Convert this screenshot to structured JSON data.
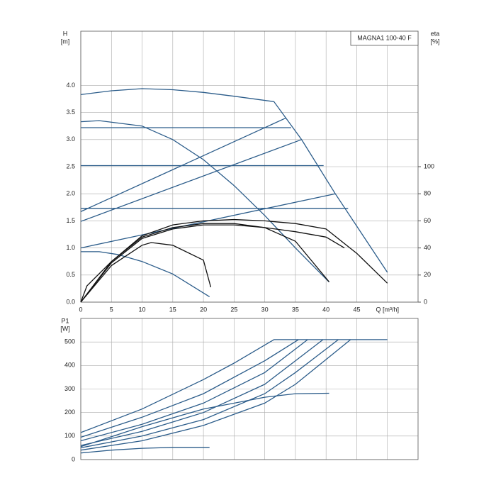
{
  "chart_data": [
    {
      "type": "line",
      "annotation": "MAGNA1 100-40 F",
      "y_label": "H",
      "y_unit": "[m]",
      "y2_label": "eta",
      "y2_unit": "[%]",
      "xlim": [
        0,
        55
      ],
      "xticks": [
        0,
        5,
        10,
        15,
        20,
        25,
        30,
        35,
        40,
        45,
        {
          "value": 50,
          "label": "Q [m³/h]"
        }
      ],
      "ylim": [
        0,
        5
      ],
      "yticks": [
        {
          "value": 0,
          "label": "0.0"
        },
        0.5,
        {
          "value": 1,
          "label": "1.0"
        },
        1.5,
        {
          "value": 2,
          "label": "2.0"
        },
        2.5,
        {
          "value": 3,
          "label": "3.0"
        },
        3.5,
        {
          "value": 4,
          "label": "4.0"
        }
      ],
      "y2lim": [
        0,
        200
      ],
      "y2ticks": [
        0,
        20,
        40,
        60,
        80,
        100
      ],
      "grid": true,
      "xtick_labels": true,
      "series": [
        {
          "color": "#2b5c8a",
          "x": [
            0,
            5,
            10,
            15,
            20,
            25,
            31.5,
            36,
            41.5,
            50
          ],
          "values": [
            3.83,
            3.9,
            3.94,
            3.92,
            3.87,
            3.8,
            3.7,
            3.0,
            2.0,
            0.55
          ]
        },
        {
          "color": "#2b5c8a",
          "x": [
            0,
            34.3
          ],
          "values": [
            3.22,
            3.22
          ]
        },
        {
          "color": "#2b5c8a",
          "x": [
            0,
            39.6
          ],
          "values": [
            2.52,
            2.52
          ]
        },
        {
          "color": "#2b5c8a",
          "x": [
            0,
            43.6
          ],
          "values": [
            1.73,
            1.73
          ]
        },
        {
          "color": "#2b5c8a",
          "x": [
            0,
            33.5
          ],
          "values": [
            1.67,
            3.4
          ]
        },
        {
          "color": "#2b5c8a",
          "x": [
            0,
            36
          ],
          "values": [
            1.49,
            3.0
          ]
        },
        {
          "color": "#2b5c8a",
          "x": [
            0,
            41.5
          ],
          "values": [
            1.0,
            2.0
          ]
        },
        {
          "color": "#2b5c8a",
          "x": [
            0,
            3,
            10,
            15,
            20,
            25,
            30,
            35,
            40.5
          ],
          "values": [
            3.33,
            3.35,
            3.25,
            3.0,
            2.63,
            2.15,
            1.6,
            1.0,
            0.37
          ]
        },
        {
          "color": "#2b5c8a",
          "x": [
            0,
            3,
            6,
            10,
            15,
            21
          ],
          "values": [
            0.93,
            0.93,
            0.88,
            0.75,
            0.52,
            0.1
          ]
        },
        {
          "color": "#111111",
          "axis": "y2",
          "x": [
            0,
            1,
            5,
            10,
            15,
            20,
            25,
            30,
            35,
            40,
            45,
            50
          ],
          "values": [
            0,
            12,
            30,
            49,
            57,
            60,
            61,
            60,
            58,
            54,
            36,
            14
          ]
        },
        {
          "color": "#111111",
          "axis": "y2",
          "x": [
            0,
            5,
            10,
            15,
            20,
            25,
            30,
            35,
            40,
            43
          ],
          "values": [
            0,
            29,
            47,
            54,
            57,
            57,
            55,
            52,
            48,
            40
          ]
        },
        {
          "color": "#111111",
          "axis": "y2",
          "x": [
            0,
            5,
            10,
            15,
            20,
            25,
            30,
            35,
            40.5
          ],
          "values": [
            0,
            30,
            48,
            55,
            58,
            58,
            55,
            45,
            15
          ]
        },
        {
          "color": "#111111",
          "axis": "y2",
          "x": [
            0,
            5,
            10,
            11.5,
            15,
            20,
            21.2
          ],
          "values": [
            0,
            27,
            42,
            44,
            42,
            31,
            11
          ]
        }
      ]
    },
    {
      "type": "line",
      "y_label": "P1",
      "y_unit": "[W]",
      "xlim": [
        0,
        55
      ],
      "xticks": [
        0,
        5,
        10,
        15,
        20,
        25,
        30,
        35,
        40,
        45,
        50
      ],
      "ylim": [
        0,
        600
      ],
      "yticks": [
        0,
        100,
        200,
        300,
        400,
        500
      ],
      "grid": true,
      "xtick_labels": false,
      "series": [
        {
          "color": "#2b5c8a",
          "x": [
            0,
            10,
            20,
            25,
            31.5,
            50
          ],
          "values": [
            115,
            215,
            340,
            410,
            510,
            510
          ]
        },
        {
          "color": "#2b5c8a",
          "x": [
            0,
            10,
            20,
            30,
            35.5
          ],
          "values": [
            95,
            180,
            280,
            420,
            510
          ]
        },
        {
          "color": "#2b5c8a",
          "x": [
            0,
            10,
            20,
            30,
            37
          ],
          "values": [
            80,
            150,
            240,
            370,
            510
          ]
        },
        {
          "color": "#2b5c8a",
          "x": [
            0,
            10,
            20,
            30,
            39.5
          ],
          "values": [
            60,
            120,
            200,
            320,
            510
          ]
        },
        {
          "color": "#2b5c8a",
          "x": [
            0,
            10,
            20,
            30,
            35,
            42
          ],
          "values": [
            50,
            100,
            170,
            280,
            370,
            510
          ]
        },
        {
          "color": "#2b5c8a",
          "x": [
            0,
            10,
            20,
            30,
            35,
            44
          ],
          "values": [
            40,
            80,
            145,
            240,
            320,
            510
          ]
        },
        {
          "color": "#2b5c8a",
          "x": [
            0,
            10,
            20,
            30,
            35,
            40.5
          ],
          "values": [
            55,
            140,
            215,
            265,
            280,
            282
          ]
        },
        {
          "color": "#2b5c8a",
          "x": [
            0,
            5,
            10,
            15,
            21
          ],
          "values": [
            28,
            40,
            48,
            52,
            52
          ]
        }
      ]
    }
  ]
}
